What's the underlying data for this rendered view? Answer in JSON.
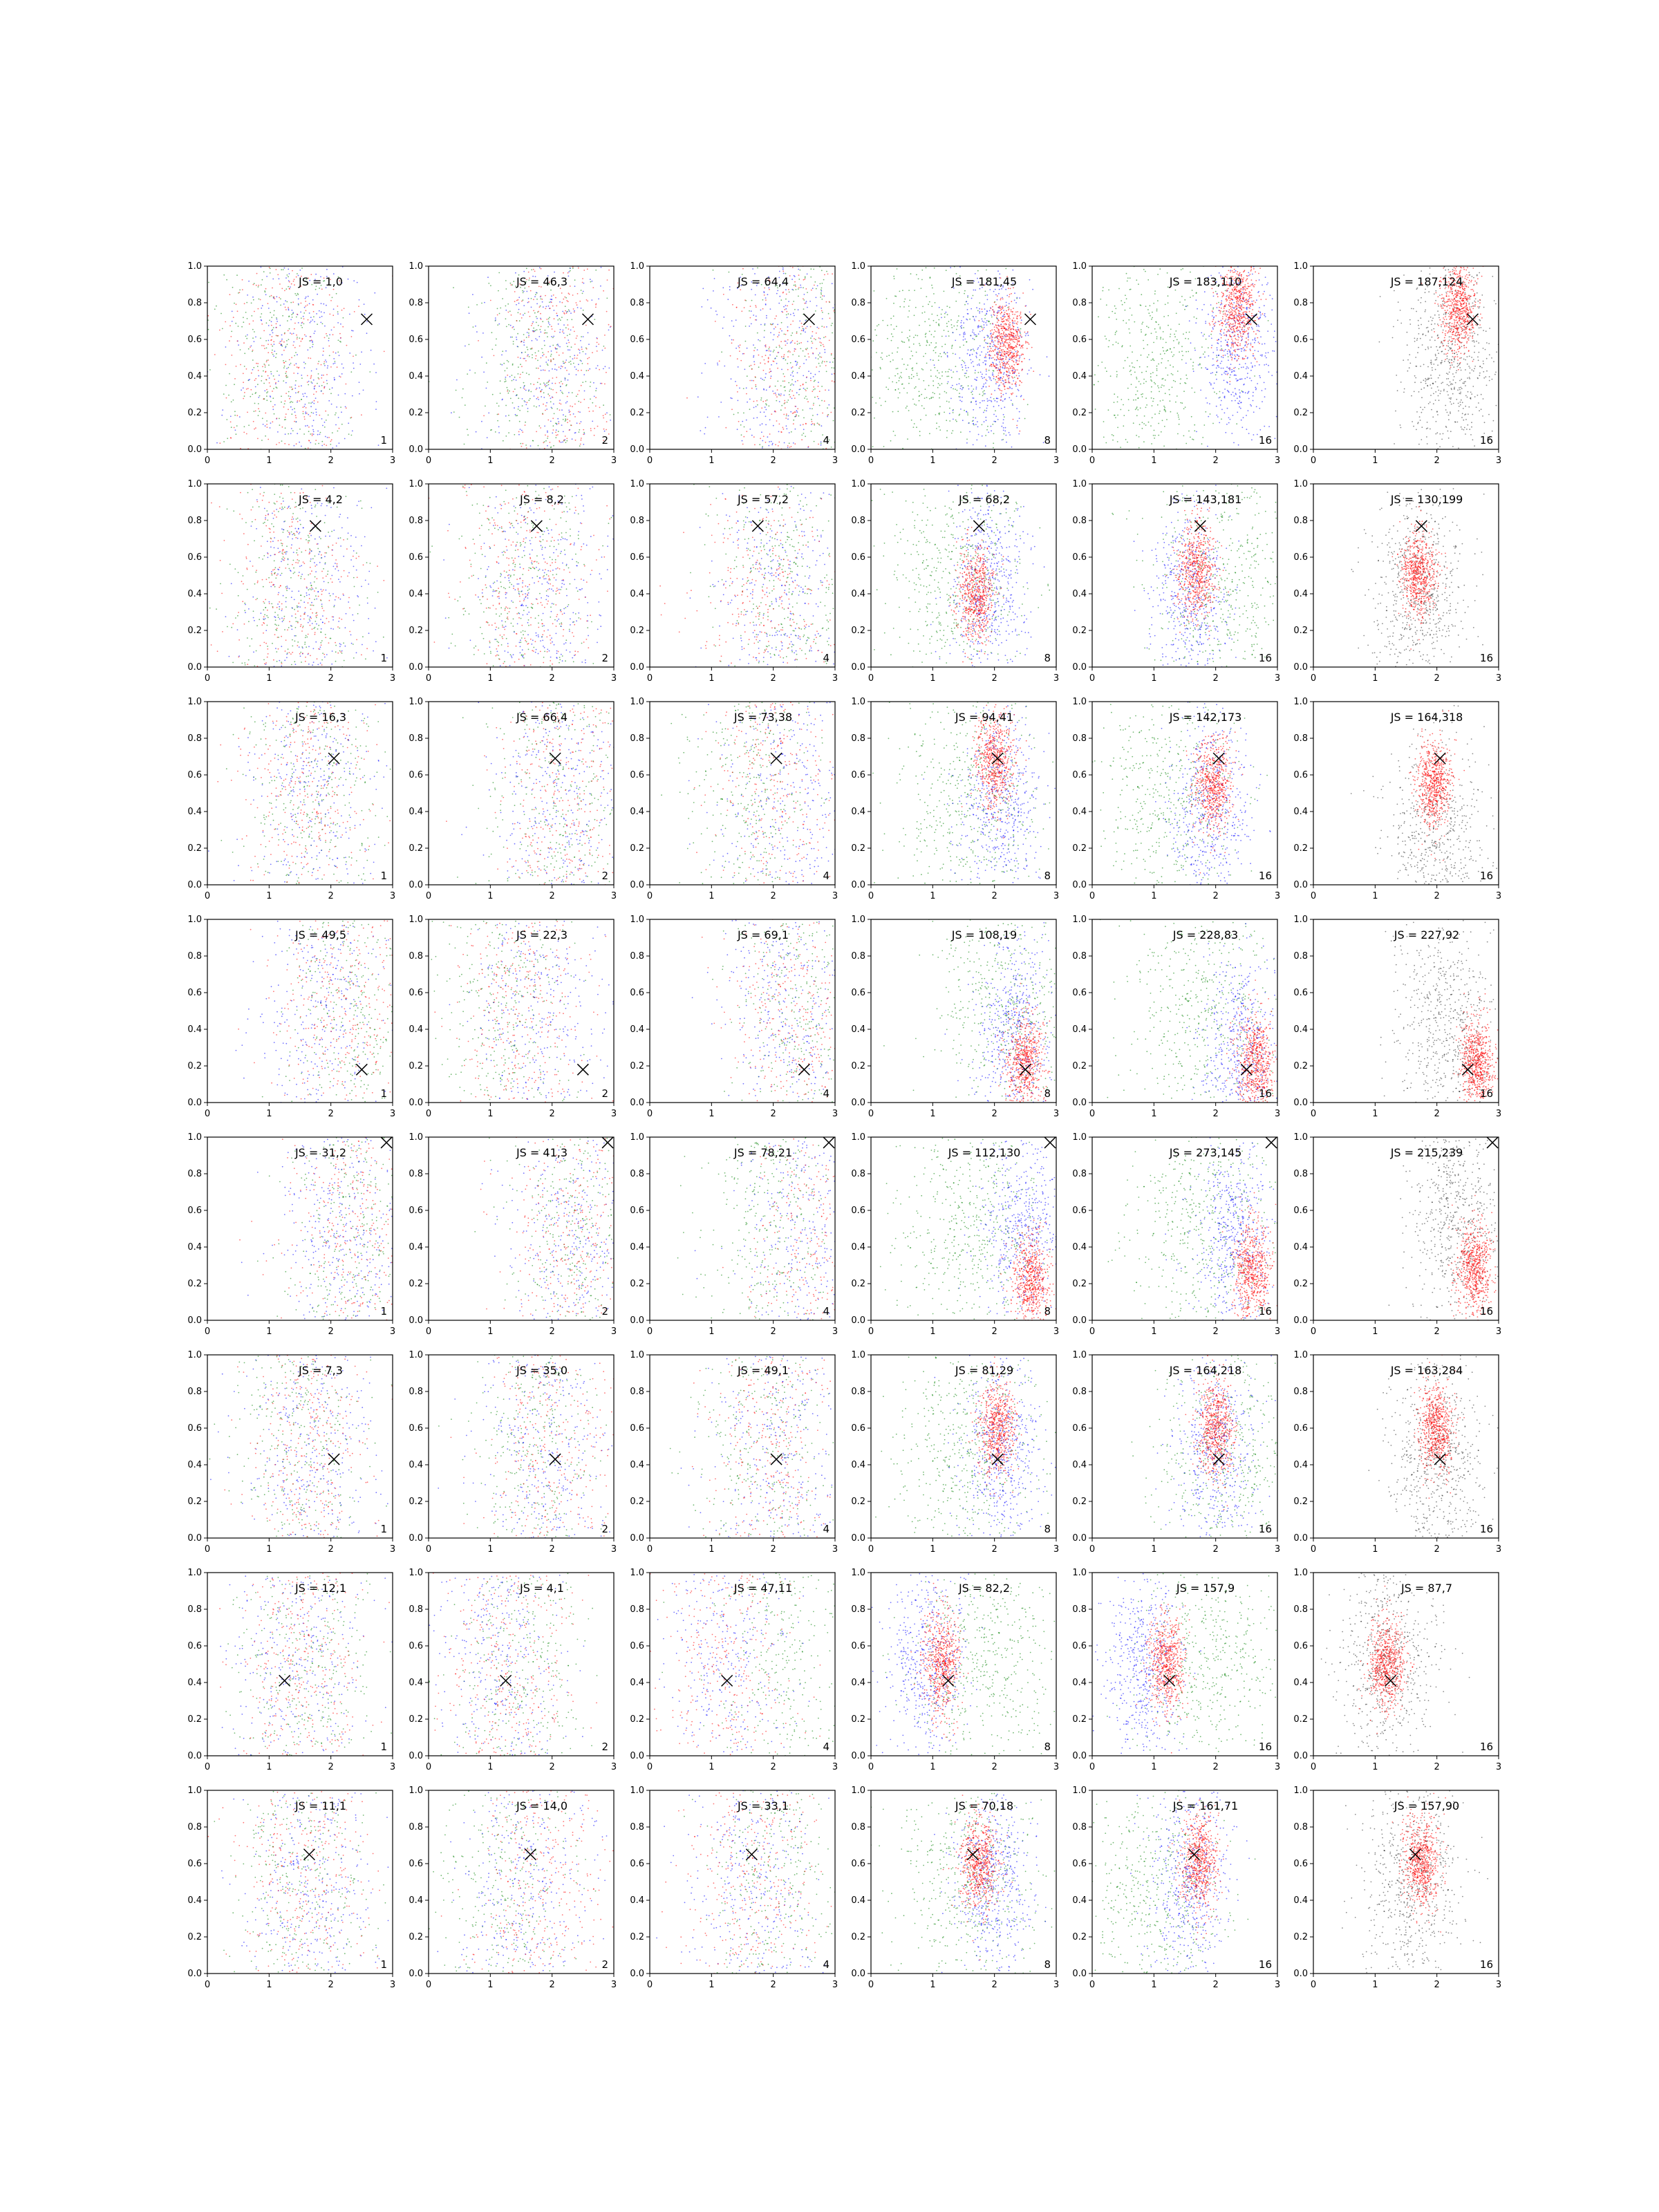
{
  "chart_data": {
    "type": "scatter",
    "rows": 8,
    "cols": 6,
    "xlim": [
      0,
      3
    ],
    "ylim": [
      0,
      1
    ],
    "x_ticks": [
      0,
      1,
      2,
      3
    ],
    "y_ticks": [
      0.0,
      0.2,
      0.4,
      0.6,
      0.8,
      1.0
    ],
    "x_tick_labels": [
      "0",
      "1",
      "2",
      "3"
    ],
    "y_tick_labels": [
      "0.0",
      "0.2",
      "0.4",
      "0.6",
      "0.8",
      "1.0"
    ],
    "grid": false,
    "legend": "none",
    "colors": {
      "red": "#ff0000",
      "blue": "#0000ff",
      "green": "#008000",
      "black": "#000000"
    },
    "columns": [
      {
        "corner": "1",
        "mode": "mixed"
      },
      {
        "corner": "2",
        "mode": "mixed"
      },
      {
        "corner": "4",
        "mode": "mixed"
      },
      {
        "corner": "8",
        "mode": "three"
      },
      {
        "corner": "16",
        "mode": "three"
      },
      {
        "corner": "16",
        "mode": "black"
      }
    ],
    "panels": [
      [
        {
          "label": "JS = 1,0",
          "marker": [
            2.58,
            0.71
          ],
          "red": [
            1.3,
            0.5
          ],
          "blue": [
            1.6,
            0.5
          ],
          "green": [
            1.2,
            0.5
          ]
        },
        {
          "label": "JS = 46,3",
          "marker": [
            2.58,
            0.71
          ],
          "red": [
            2.2,
            0.5
          ],
          "blue": [
            2.0,
            0.5
          ],
          "green": [
            1.7,
            0.5
          ]
        },
        {
          "label": "JS = 64,4",
          "marker": [
            2.58,
            0.71
          ],
          "red": [
            2.3,
            0.5
          ],
          "blue": [
            2.1,
            0.5
          ],
          "green": [
            2.5,
            0.5
          ]
        },
        {
          "label": "JS = 181,45",
          "marker": [
            2.58,
            0.71
          ],
          "red": [
            2.2,
            0.58
          ],
          "blue": [
            1.9,
            0.5
          ],
          "green": [
            1.0,
            0.5
          ]
        },
        {
          "label": "JS = 183,110",
          "marker": [
            2.58,
            0.71
          ],
          "red": [
            2.35,
            0.77
          ],
          "blue": [
            2.3,
            0.55
          ],
          "green": [
            1.0,
            0.45
          ]
        },
        {
          "label": "JS = 187,124",
          "marker": [
            2.58,
            0.71
          ],
          "red": [
            2.35,
            0.77
          ],
          "black": [
            2.2,
            0.5
          ]
        }
      ],
      [
        {
          "label": "JS = 4,2",
          "marker": [
            1.75,
            0.77
          ],
          "red": [
            1.4,
            0.45
          ],
          "blue": [
            1.6,
            0.45
          ],
          "green": [
            1.4,
            0.45
          ]
        },
        {
          "label": "JS = 8,2",
          "marker": [
            1.75,
            0.77
          ],
          "red": [
            1.6,
            0.45
          ],
          "blue": [
            1.8,
            0.45
          ],
          "green": [
            1.5,
            0.45
          ]
        },
        {
          "label": "JS = 57,2",
          "marker": [
            1.75,
            0.77
          ],
          "red": [
            1.9,
            0.3
          ],
          "blue": [
            2.1,
            0.3
          ],
          "green": [
            2.2,
            0.5
          ]
        },
        {
          "label": "JS = 68,2",
          "marker": [
            1.75,
            0.77
          ],
          "red": [
            1.7,
            0.4
          ],
          "blue": [
            1.9,
            0.45
          ],
          "green": [
            1.4,
            0.5
          ]
        },
        {
          "label": "JS = 143,181",
          "marker": [
            1.75,
            0.77
          ],
          "red": [
            1.7,
            0.52
          ],
          "blue": [
            1.6,
            0.35
          ],
          "green": [
            2.1,
            0.5
          ]
        },
        {
          "label": "JS = 130,199",
          "marker": [
            1.75,
            0.77
          ],
          "red": [
            1.7,
            0.52
          ],
          "black": [
            1.7,
            0.4
          ]
        }
      ],
      [
        {
          "label": "JS = 16,3",
          "marker": [
            2.05,
            0.69
          ],
          "red": [
            1.6,
            0.5
          ],
          "blue": [
            1.7,
            0.5
          ],
          "green": [
            1.7,
            0.5
          ]
        },
        {
          "label": "JS = 66,4",
          "marker": [
            2.05,
            0.69
          ],
          "red": [
            2.2,
            0.5
          ],
          "blue": [
            2.1,
            0.5
          ],
          "green": [
            2.0,
            0.5
          ]
        },
        {
          "label": "JS = 73,38",
          "marker": [
            2.05,
            0.69
          ],
          "red": [
            2.05,
            0.65
          ],
          "blue": [
            2.2,
            0.4
          ],
          "green": [
            1.6,
            0.5
          ]
        },
        {
          "label": "JS = 94,41",
          "marker": [
            2.05,
            0.69
          ],
          "red": [
            2.0,
            0.68
          ],
          "blue": [
            2.1,
            0.45
          ],
          "green": [
            1.6,
            0.45
          ]
        },
        {
          "label": "JS = 142,173",
          "marker": [
            2.05,
            0.69
          ],
          "red": [
            1.95,
            0.55
          ],
          "blue": [
            1.9,
            0.4
          ],
          "green": [
            1.2,
            0.45
          ]
        },
        {
          "label": "JS = 164,318",
          "marker": [
            2.05,
            0.69
          ],
          "red": [
            1.95,
            0.55
          ],
          "black": [
            2.0,
            0.2
          ]
        }
      ],
      [
        {
          "label": "JS = 49,5",
          "marker": [
            2.5,
            0.18
          ],
          "red": [
            2.2,
            0.5
          ],
          "blue": [
            1.9,
            0.5
          ],
          "green": [
            2.3,
            0.5
          ]
        },
        {
          "label": "JS = 22,3",
          "marker": [
            2.5,
            0.18
          ],
          "red": [
            1.5,
            0.5
          ],
          "blue": [
            1.8,
            0.5
          ],
          "green": [
            1.2,
            0.5
          ]
        },
        {
          "label": "JS = 69,1",
          "marker": [
            2.5,
            0.18
          ],
          "red": [
            2.3,
            0.45
          ],
          "blue": [
            2.2,
            0.45
          ],
          "green": [
            2.4,
            0.5
          ]
        },
        {
          "label": "JS = 108,19",
          "marker": [
            2.5,
            0.18
          ],
          "red": [
            2.5,
            0.22
          ],
          "blue": [
            2.3,
            0.4
          ],
          "green": [
            2.2,
            0.55
          ]
        },
        {
          "label": "JS = 228,83",
          "marker": [
            2.5,
            0.18
          ],
          "red": [
            2.65,
            0.22
          ],
          "blue": [
            2.4,
            0.3
          ],
          "green": [
            1.8,
            0.5
          ]
        },
        {
          "label": "JS = 227,92",
          "marker": [
            2.5,
            0.18
          ],
          "red": [
            2.65,
            0.22
          ],
          "black": [
            2.2,
            0.4
          ]
        }
      ],
      [
        {
          "label": "JS = 31,2",
          "marker": [
            2.9,
            0.97
          ],
          "red": [
            2.3,
            0.45
          ],
          "blue": [
            2.2,
            0.45
          ],
          "green": [
            2.3,
            0.45
          ]
        },
        {
          "label": "JS = 41,3",
          "marker": [
            2.9,
            0.97
          ],
          "red": [
            2.4,
            0.45
          ],
          "blue": [
            2.3,
            0.45
          ],
          "green": [
            2.4,
            0.45
          ]
        },
        {
          "label": "JS = 78,21",
          "marker": [
            2.9,
            0.97
          ],
          "red": [
            2.7,
            0.3
          ],
          "blue": [
            2.5,
            0.45
          ],
          "green": [
            1.9,
            0.5
          ]
        },
        {
          "label": "JS = 112,130",
          "marker": [
            2.9,
            0.97
          ],
          "red": [
            2.6,
            0.22
          ],
          "blue": [
            2.5,
            0.5
          ],
          "green": [
            1.6,
            0.5
          ]
        },
        {
          "label": "JS = 273,145",
          "marker": [
            2.9,
            0.97
          ],
          "red": [
            2.6,
            0.28
          ],
          "blue": [
            2.3,
            0.45
          ],
          "green": [
            1.8,
            0.5
          ]
        },
        {
          "label": "JS = 215,239",
          "marker": [
            2.9,
            0.97
          ],
          "red": [
            2.6,
            0.28
          ],
          "black": [
            2.3,
            0.55
          ]
        }
      ],
      [
        {
          "label": "JS = 7,3",
          "marker": [
            2.05,
            0.43
          ],
          "red": [
            1.6,
            0.5
          ],
          "blue": [
            1.7,
            0.5
          ],
          "green": [
            1.5,
            0.5
          ]
        },
        {
          "label": "JS = 35,0",
          "marker": [
            2.05,
            0.43
          ],
          "red": [
            2.0,
            0.5
          ],
          "blue": [
            1.9,
            0.5
          ],
          "green": [
            1.7,
            0.5
          ]
        },
        {
          "label": "JS = 49,1",
          "marker": [
            2.05,
            0.43
          ],
          "red": [
            2.0,
            0.55
          ],
          "blue": [
            2.1,
            0.45
          ],
          "green": [
            1.8,
            0.5
          ]
        },
        {
          "label": "JS = 81,29",
          "marker": [
            2.05,
            0.43
          ],
          "red": [
            2.05,
            0.6
          ],
          "blue": [
            2.1,
            0.45
          ],
          "green": [
            1.6,
            0.5
          ]
        },
        {
          "label": "JS = 164,218",
          "marker": [
            2.05,
            0.43
          ],
          "red": [
            2.0,
            0.6
          ],
          "blue": [
            2.0,
            0.45
          ],
          "green": [
            2.2,
            0.4
          ]
        },
        {
          "label": "JS = 163,284",
          "marker": [
            2.05,
            0.43
          ],
          "red": [
            2.0,
            0.6
          ],
          "black": [
            2.0,
            0.4
          ]
        }
      ],
      [
        {
          "label": "JS = 12,1",
          "marker": [
            1.25,
            0.41
          ],
          "red": [
            1.5,
            0.5
          ],
          "blue": [
            1.5,
            0.5
          ],
          "green": [
            1.6,
            0.5
          ]
        },
        {
          "label": "JS = 4,1",
          "marker": [
            1.25,
            0.41
          ],
          "red": [
            1.3,
            0.5
          ],
          "blue": [
            1.2,
            0.5
          ],
          "green": [
            1.4,
            0.5
          ]
        },
        {
          "label": "JS = 47,11",
          "marker": [
            1.25,
            0.41
          ],
          "red": [
            1.2,
            0.5
          ],
          "blue": [
            1.3,
            0.5
          ],
          "green": [
            2.2,
            0.5
          ]
        },
        {
          "label": "JS = 82,2",
          "marker": [
            1.25,
            0.41
          ],
          "red": [
            1.15,
            0.5
          ],
          "blue": [
            0.9,
            0.5
          ],
          "green": [
            1.8,
            0.5
          ]
        },
        {
          "label": "JS = 157,9",
          "marker": [
            1.25,
            0.41
          ],
          "red": [
            1.2,
            0.5
          ],
          "blue": [
            0.8,
            0.5
          ],
          "green": [
            1.9,
            0.5
          ]
        },
        {
          "label": "JS = 87,7",
          "marker": [
            1.25,
            0.41
          ],
          "red": [
            1.2,
            0.5
          ],
          "black": [
            1.2,
            0.5
          ]
        }
      ],
      [
        {
          "label": "JS = 11,1",
          "marker": [
            1.65,
            0.65
          ],
          "red": [
            1.6,
            0.5
          ],
          "blue": [
            1.7,
            0.5
          ],
          "green": [
            1.5,
            0.5
          ]
        },
        {
          "label": "JS = 14,0",
          "marker": [
            1.65,
            0.65
          ],
          "red": [
            1.8,
            0.5
          ],
          "blue": [
            1.6,
            0.5
          ],
          "green": [
            1.3,
            0.5
          ]
        },
        {
          "label": "JS = 33,1",
          "marker": [
            1.65,
            0.65
          ],
          "red": [
            1.7,
            0.55
          ],
          "blue": [
            1.6,
            0.5
          ],
          "green": [
            2.0,
            0.5
          ]
        },
        {
          "label": "JS = 70,18",
          "marker": [
            1.65,
            0.65
          ],
          "red": [
            1.75,
            0.6
          ],
          "blue": [
            2.0,
            0.5
          ],
          "green": [
            1.5,
            0.5
          ]
        },
        {
          "label": "JS = 161,71",
          "marker": [
            1.65,
            0.65
          ],
          "red": [
            1.75,
            0.6
          ],
          "blue": [
            1.6,
            0.5
          ],
          "green": [
            1.0,
            0.45
          ]
        },
        {
          "label": "JS = 157,90",
          "marker": [
            1.65,
            0.65
          ],
          "red": [
            1.75,
            0.6
          ],
          "black": [
            1.6,
            0.5
          ]
        }
      ]
    ]
  }
}
